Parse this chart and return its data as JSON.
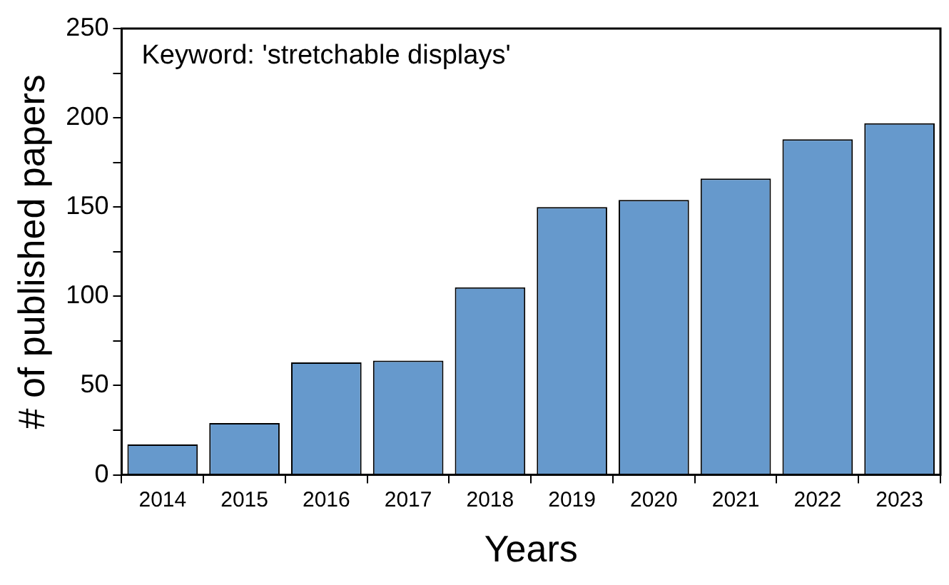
{
  "chart_data": {
    "type": "bar",
    "xlabel": "Years",
    "ylabel": "# of published papers",
    "annotations": [
      "Keyword: 'stretchable displays'"
    ],
    "categories": [
      "2014",
      "2015",
      "2016",
      "2017",
      "2018",
      "2019",
      "2020",
      "2021",
      "2022",
      "2023"
    ],
    "values": [
      17,
      29,
      63,
      64,
      105,
      150,
      154,
      166,
      188,
      197
    ],
    "color": "#6699cc",
    "ylim": [
      0,
      250
    ],
    "yticks": [
      0,
      {
        "value": 25,
        "label": null
      },
      50,
      {
        "value": 75,
        "label": null
      },
      100,
      {
        "value": 125,
        "label": null
      },
      150,
      {
        "value": 175,
        "label": null
      },
      200,
      {
        "value": 225,
        "label": null
      },
      250
    ],
    "grid": false,
    "legend": false
  }
}
